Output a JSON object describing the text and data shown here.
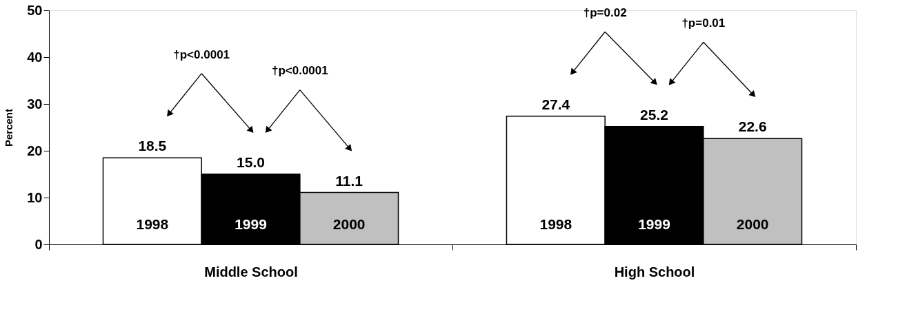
{
  "chart_data": {
    "type": "bar",
    "ylabel": "Percent",
    "categories": [
      "Middle School",
      "High School"
    ],
    "series": [
      {
        "name": "1998",
        "color": "#ffffff",
        "values": [
          18.5,
          27.4
        ],
        "value_labels": [
          "18.5",
          "27.4"
        ]
      },
      {
        "name": "1999",
        "color": "#000000",
        "values": [
          15.0,
          25.2
        ],
        "value_labels": [
          "15.0",
          "25.2"
        ]
      },
      {
        "name": "2000",
        "color": "#c0c0c0",
        "values": [
          11.1,
          22.6
        ],
        "value_labels": [
          "11.1",
          "22.6"
        ]
      }
    ],
    "ylim": [
      0,
      50
    ],
    "yticks": [
      0,
      10,
      20,
      30,
      40,
      50
    ],
    "grid": false,
    "legend": false,
    "annotations": [
      "†p<0.0001",
      "†p<0.0001",
      "†p=0.02",
      "†p=0.01"
    ]
  }
}
